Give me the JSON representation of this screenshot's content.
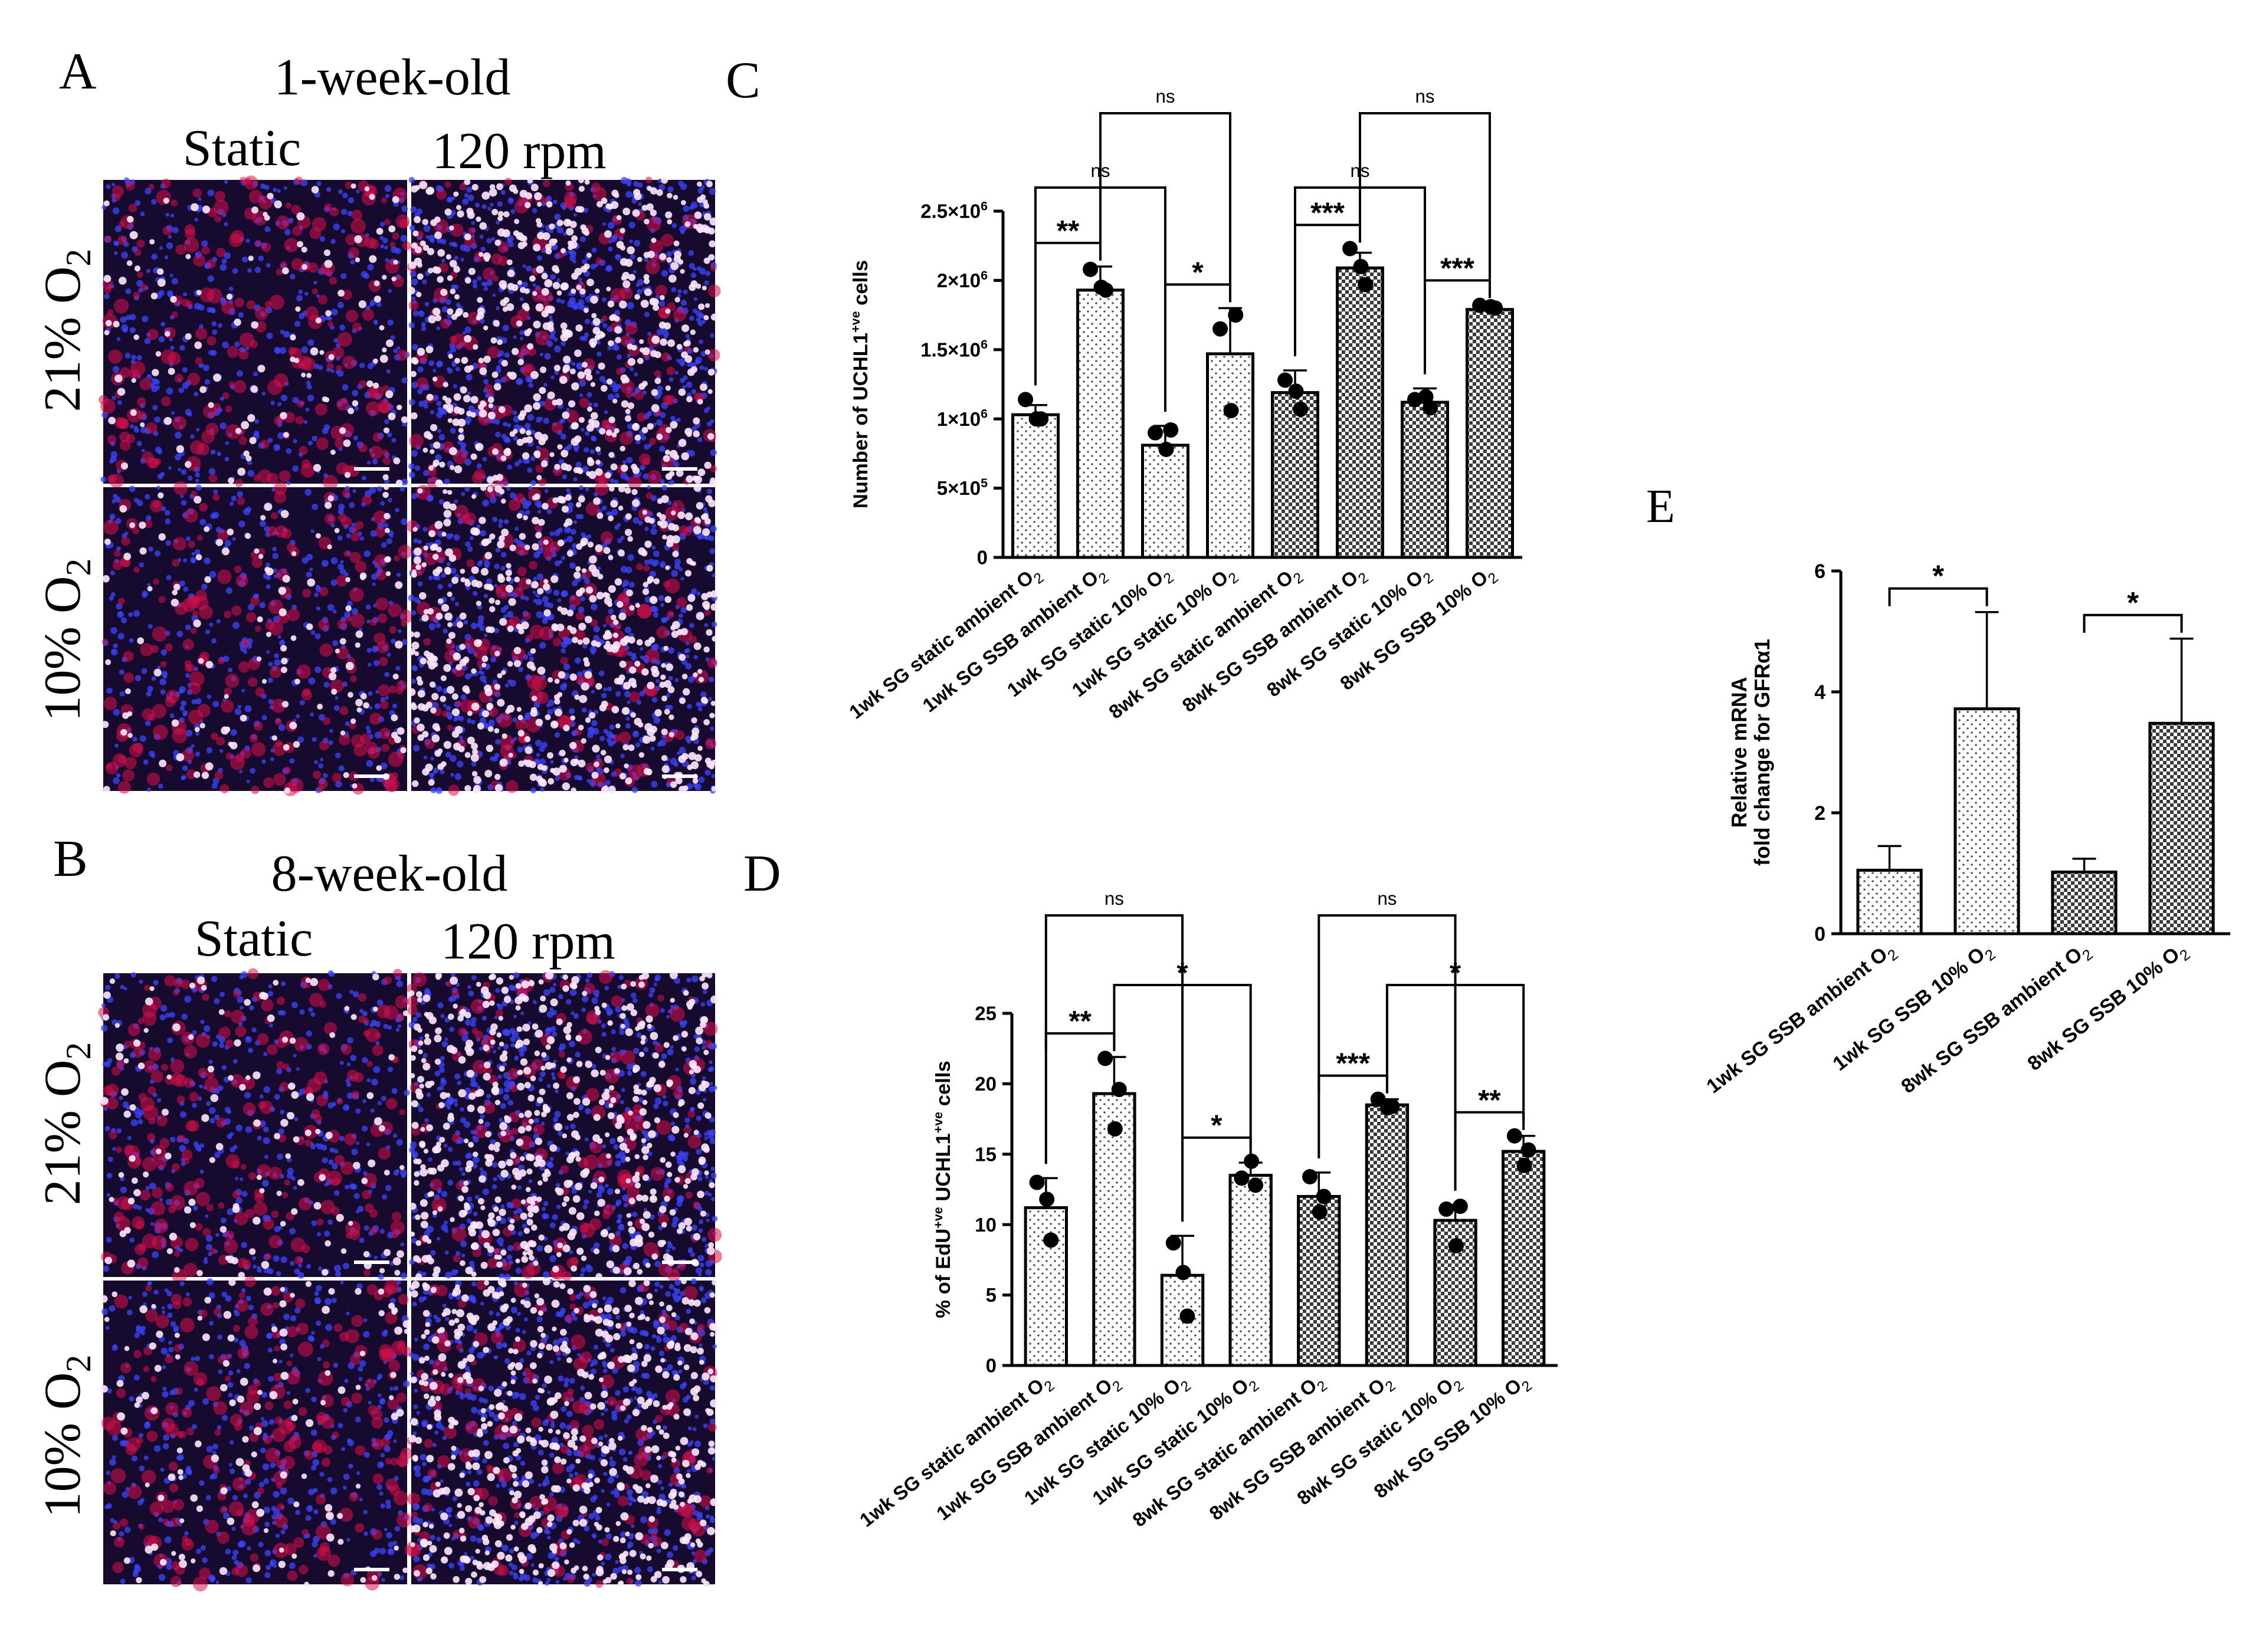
{
  "panels": {
    "A": {
      "letter": "A",
      "title": "1-week-old",
      "col_static": "Static",
      "col_rpm": "120 rpm",
      "row_21": "21% O",
      "row_10": "10% O",
      "sub": "2"
    },
    "B": {
      "letter": "B",
      "title": "8-week-old",
      "col_static": "Static",
      "col_rpm": "120 rpm",
      "row_21": "21% O",
      "row_10": "10% O",
      "sub": "2"
    },
    "C": {
      "letter": "C"
    },
    "D": {
      "letter": "D"
    },
    "E": {
      "letter": "E"
    }
  },
  "colors": {
    "micrograph_bg": "#160a2e",
    "nuclei_blue": "#3c46ff",
    "cells_red": "#d8104a",
    "cells_white": "#ffe8ff",
    "bar_edge": "#000000"
  },
  "chart_data": [
    {
      "id": "C",
      "type": "bar",
      "ylabel": "Number of UCHL1",
      "ylabel_sup": "+ve",
      "ylabel_tail": "cells",
      "ylim": [
        0,
        2500000
      ],
      "yticks": [
        "0",
        "5×10",
        "1×10",
        "1.5×10",
        "2×10",
        "2.5×10"
      ],
      "ytick_values": [
        0,
        500000,
        1000000,
        1500000,
        2000000,
        2500000
      ],
      "ytick_sups": [
        "",
        "5",
        "6",
        "6",
        "6",
        "6"
      ],
      "categories": [
        "1wk SG static ambient O",
        "1wk SG SSB ambient O",
        "1wk SG static 10% O",
        "1wk SG static 10% O",
        "8wk SG static ambient O",
        "8wk SG SSB ambient O",
        "8wk SG static 10% O",
        "8wk SG SSB 10% O"
      ],
      "cat_sub": "2",
      "patterns": [
        "dots",
        "dots",
        "dots",
        "dots",
        "check",
        "check",
        "check",
        "check"
      ],
      "values": [
        1030000,
        1930000,
        810000,
        1470000,
        1190000,
        2090000,
        1120000,
        1790000
      ],
      "errors": [
        70000,
        170000,
        140000,
        330000,
        160000,
        110000,
        100000,
        40000
      ],
      "points": [
        [
          1140000,
          1000000,
          1000000
        ],
        [
          2080000,
          1930000,
          1950000
        ],
        [
          900000,
          920000,
          780000
        ],
        [
          1650000,
          1750000,
          1060000
        ],
        [
          1280000,
          1070000,
          1200000
        ],
        [
          2230000,
          1970000,
          2100000
        ],
        [
          1140000,
          1080000,
          1160000
        ],
        [
          1820000,
          1800000,
          1810000
        ]
      ],
      "brackets": [
        {
          "from": 0,
          "to": 1,
          "label": "**",
          "level": 0
        },
        {
          "from": 2,
          "to": 3,
          "label": "*",
          "level": 0
        },
        {
          "from": 0,
          "to": 2,
          "label": "ns",
          "level": 1
        },
        {
          "from": 1,
          "to": 3,
          "label": "ns",
          "level": 2
        },
        {
          "from": 4,
          "to": 5,
          "label": "***",
          "level": 0
        },
        {
          "from": 6,
          "to": 7,
          "label": "***",
          "level": 0
        },
        {
          "from": 4,
          "to": 6,
          "label": "ns",
          "level": 1
        },
        {
          "from": 5,
          "to": 7,
          "label": "ns",
          "level": 2
        }
      ]
    },
    {
      "id": "D",
      "type": "bar",
      "ylabel": "% of EdU",
      "ylabel_sup": "+ve",
      "ylabel_mid": "UCHL1",
      "ylabel_sup2": "+ve",
      "ylabel_tail": "cells",
      "ylim": [
        0,
        25
      ],
      "yticks": [
        "0",
        "5",
        "10",
        "15",
        "20",
        "25"
      ],
      "ytick_values": [
        0,
        5,
        10,
        15,
        20,
        25
      ],
      "categories": [
        "1wk SG static ambient O",
        "1wk SG SSB ambient O",
        "1wk SG static 10% O",
        "1wk SG static 10% O",
        "8wk SG static ambient O",
        "8wk SG SSB ambient O",
        "8wk SG static 10% O",
        "8wk SG SSB 10% O"
      ],
      "cat_sub": "2",
      "patterns": [
        "dots",
        "dots",
        "dots",
        "dots",
        "check",
        "check",
        "check",
        "check"
      ],
      "values": [
        11.2,
        19.3,
        6.4,
        13.5,
        12.0,
        18.5,
        10.3,
        15.2
      ],
      "errors": [
        2.1,
        2.6,
        2.8,
        0.9,
        1.7,
        0.4,
        1.1,
        1.1
      ],
      "points": [
        [
          13.0,
          8.9,
          11.8
        ],
        [
          21.8,
          19.6,
          16.8
        ],
        [
          8.7,
          3.5,
          6.6
        ],
        [
          13.3,
          12.8,
          14.5
        ],
        [
          13.4,
          12.0,
          10.9
        ],
        [
          18.9,
          18.4,
          18.3
        ],
        [
          11.1,
          11.3,
          8.5
        ],
        [
          16.3,
          15.3,
          14.2
        ]
      ],
      "brackets": [
        {
          "from": 0,
          "to": 1,
          "label": "**",
          "level": 0
        },
        {
          "from": 2,
          "to": 3,
          "label": "*",
          "level": 0
        },
        {
          "from": 1,
          "to": 3,
          "label": "*",
          "level": 1
        },
        {
          "from": 0,
          "to": 2,
          "label": "ns",
          "level": 2
        },
        {
          "from": 4,
          "to": 5,
          "label": "***",
          "level": 0
        },
        {
          "from": 6,
          "to": 7,
          "label": "**",
          "level": 0
        },
        {
          "from": 5,
          "to": 7,
          "label": "*",
          "level": 1
        },
        {
          "from": 4,
          "to": 6,
          "label": "ns",
          "level": 2
        }
      ]
    },
    {
      "id": "E",
      "type": "bar",
      "ylabel": "Relative mRNA",
      "ylabel2": "fold change for GFRα1",
      "ylim": [
        0,
        6
      ],
      "yticks": [
        "0",
        "2",
        "4",
        "6"
      ],
      "ytick_values": [
        0,
        2,
        4,
        6
      ],
      "categories": [
        "1wk SG SSB ambient O",
        "1wk SG SSB 10% O",
        "8wk SG SSB ambient O",
        "8wk SG SSB 10% O"
      ],
      "cat_sub": "2",
      "patterns": [
        "dots",
        "dots",
        "check",
        "check"
      ],
      "values": [
        1.05,
        3.72,
        1.02,
        3.48
      ],
      "errors": [
        0.4,
        1.6,
        0.22,
        1.4
      ],
      "brackets": [
        {
          "from": 0,
          "to": 1,
          "label": "*",
          "level": 0
        },
        {
          "from": 2,
          "to": 3,
          "label": "*",
          "level": 0
        }
      ]
    }
  ]
}
